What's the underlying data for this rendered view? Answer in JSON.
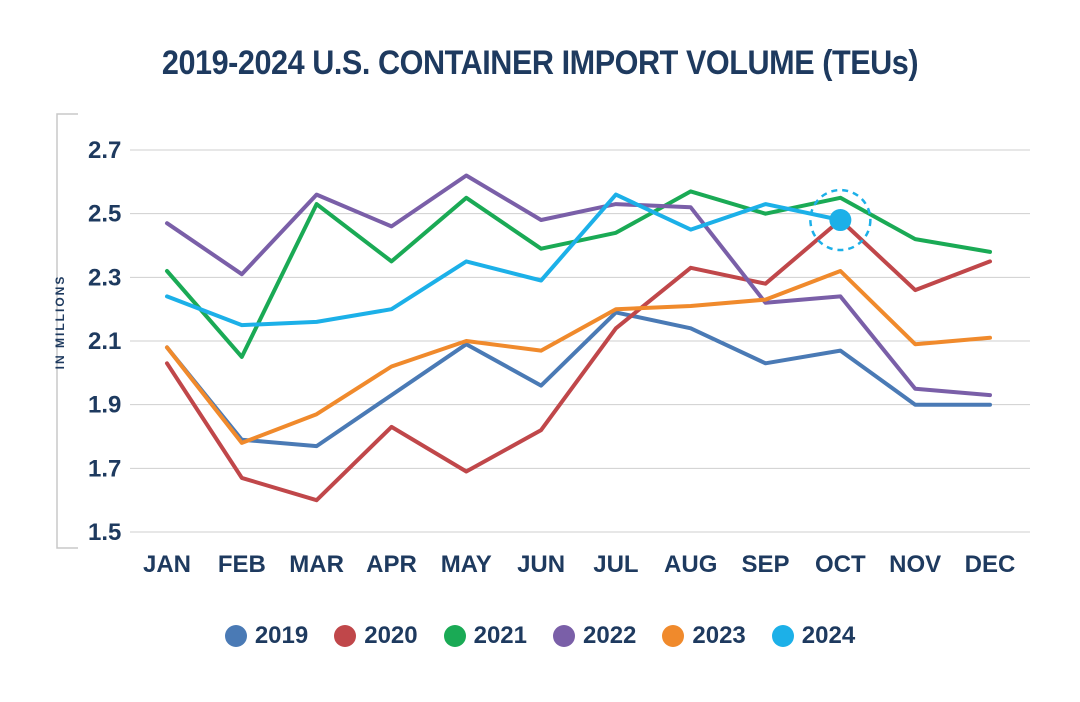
{
  "chart_data": {
    "type": "line",
    "title": "2019-2024 U.S. CONTAINER IMPORT VOLUME (TEUs)",
    "xlabel": "",
    "ylabel": "IN MILLIONS",
    "categories": [
      "JAN",
      "FEB",
      "MAR",
      "APR",
      "MAY",
      "JUN",
      "JUL",
      "AUG",
      "SEP",
      "OCT",
      "NOV",
      "DEC"
    ],
    "yticks": [
      "1.5",
      "1.7",
      "1.9",
      "2.1",
      "2.3",
      "2.5",
      "2.7"
    ],
    "ylim": [
      1.5,
      2.7
    ],
    "grid": true,
    "legend_position": "bottom",
    "highlight": {
      "series": "2024",
      "category": "OCT",
      "value": 2.48
    },
    "series": [
      {
        "name": "2019",
        "color": "#4a7ab5",
        "values": [
          2.08,
          1.79,
          1.77,
          1.93,
          2.09,
          1.96,
          2.19,
          2.14,
          2.03,
          2.07,
          1.9,
          1.9
        ]
      },
      {
        "name": "2020",
        "color": "#c0474a",
        "values": [
          2.03,
          1.67,
          1.6,
          1.83,
          1.69,
          1.82,
          2.14,
          2.33,
          2.28,
          2.48,
          2.26,
          2.35
        ]
      },
      {
        "name": "2021",
        "color": "#1aaa55",
        "values": [
          2.32,
          2.05,
          2.53,
          2.35,
          2.55,
          2.39,
          2.44,
          2.57,
          2.5,
          2.55,
          2.42,
          2.38
        ]
      },
      {
        "name": "2022",
        "color": "#7a5fa8",
        "values": [
          2.47,
          2.31,
          2.56,
          2.46,
          2.62,
          2.48,
          2.53,
          2.52,
          2.22,
          2.24,
          1.95,
          1.93
        ]
      },
      {
        "name": "2023",
        "color": "#f08a2c",
        "values": [
          2.08,
          1.78,
          1.87,
          2.02,
          2.1,
          2.07,
          2.2,
          2.21,
          2.23,
          2.32,
          2.09,
          2.11
        ]
      },
      {
        "name": "2024",
        "color": "#1cb0e8",
        "values": [
          2.24,
          2.15,
          2.16,
          2.2,
          2.35,
          2.29,
          2.56,
          2.45,
          2.53,
          2.48,
          null,
          null
        ]
      }
    ]
  }
}
